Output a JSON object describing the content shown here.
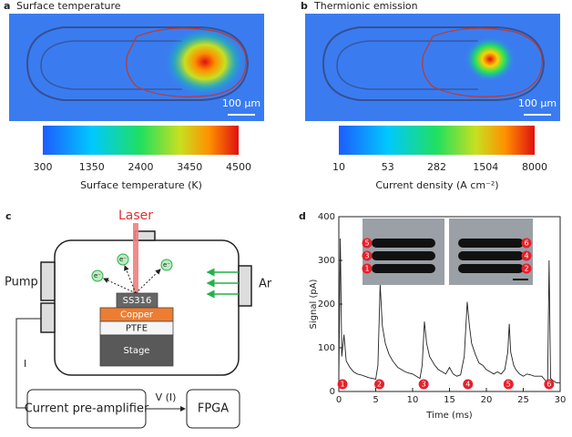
{
  "panels": {
    "a": {
      "label": "a",
      "title": "Surface temperature",
      "scale_bar": "100 µm",
      "colorbar": {
        "ticks": [
          300,
          1350,
          2400,
          3450,
          4500
        ],
        "label": "Surface temperature (K)"
      }
    },
    "b": {
      "label": "b",
      "title": "Thermionic emission",
      "scale_bar": "100 µm",
      "colorbar": {
        "ticks": [
          10,
          53,
          282,
          1504,
          8000
        ],
        "label": "Current density (A cm⁻²)"
      }
    },
    "c": {
      "label": "c",
      "laser": "Laser",
      "pump": "Pump",
      "gas": "Ar",
      "electron": "e⁻",
      "layers": [
        "SS316",
        "Copper",
        "PTFE",
        "Stage"
      ],
      "current": "I",
      "amplifier": "Current pre-amplifier",
      "signal": "V (I)",
      "fpga": "FPGA"
    },
    "d": {
      "label": "d",
      "inset_left": [
        "5",
        "3",
        "1"
      ],
      "inset_right": [
        "6",
        "4",
        "2"
      ]
    }
  },
  "chart_data": {
    "type": "line",
    "xlabel": "Time (ms)",
    "ylabel": "Signal (pA)",
    "xlim": [
      0,
      30
    ],
    "ylim": [
      0,
      400
    ],
    "xticks": [
      0,
      5,
      10,
      15,
      20,
      25,
      30
    ],
    "yticks": [
      0,
      100,
      200,
      300,
      400
    ],
    "series": [
      {
        "color": "#222222",
        "x": [
          0,
          0.2,
          0.4,
          0.7,
          1.0,
          1.5,
          2,
          2.5,
          3,
          3.5,
          4,
          4.5,
          5,
          5.3,
          5.6,
          5.9,
          6.3,
          6.8,
          7.3,
          8,
          8.5,
          9,
          9.5,
          10,
          10.5,
          11,
          11.3,
          11.6,
          11.9,
          12.3,
          13,
          13.5,
          14,
          14.5,
          15,
          15.5,
          16,
          16.5,
          17,
          17.4,
          17.7,
          18,
          18.5,
          19,
          19.5,
          20,
          20.5,
          21,
          21.5,
          22,
          22.5,
          22.9,
          23.1,
          23.3,
          23.7,
          24,
          24.5,
          25,
          25.5,
          26,
          26.5,
          27,
          27.5,
          28,
          28.3,
          28.5,
          28.7,
          29,
          29.5,
          30
        ],
        "values": [
          30,
          350,
          80,
          130,
          70,
          55,
          45,
          40,
          38,
          35,
          32,
          30,
          28,
          60,
          245,
          150,
          110,
          85,
          70,
          55,
          50,
          45,
          42,
          40,
          35,
          30,
          60,
          160,
          110,
          80,
          60,
          50,
          45,
          40,
          55,
          40,
          35,
          38,
          80,
          205,
          150,
          110,
          85,
          65,
          60,
          50,
          45,
          40,
          45,
          40,
          50,
          90,
          155,
          90,
          60,
          50,
          40,
          35,
          40,
          38,
          35,
          35,
          35,
          25,
          20,
          300,
          30,
          25,
          20,
          20
        ]
      }
    ],
    "markers": {
      "x": [
        0.5,
        5.5,
        11.5,
        17.5,
        23,
        28.5
      ],
      "labels": [
        "1",
        "2",
        "3",
        "4",
        "5",
        "6"
      ],
      "color": "#e8202a"
    }
  }
}
